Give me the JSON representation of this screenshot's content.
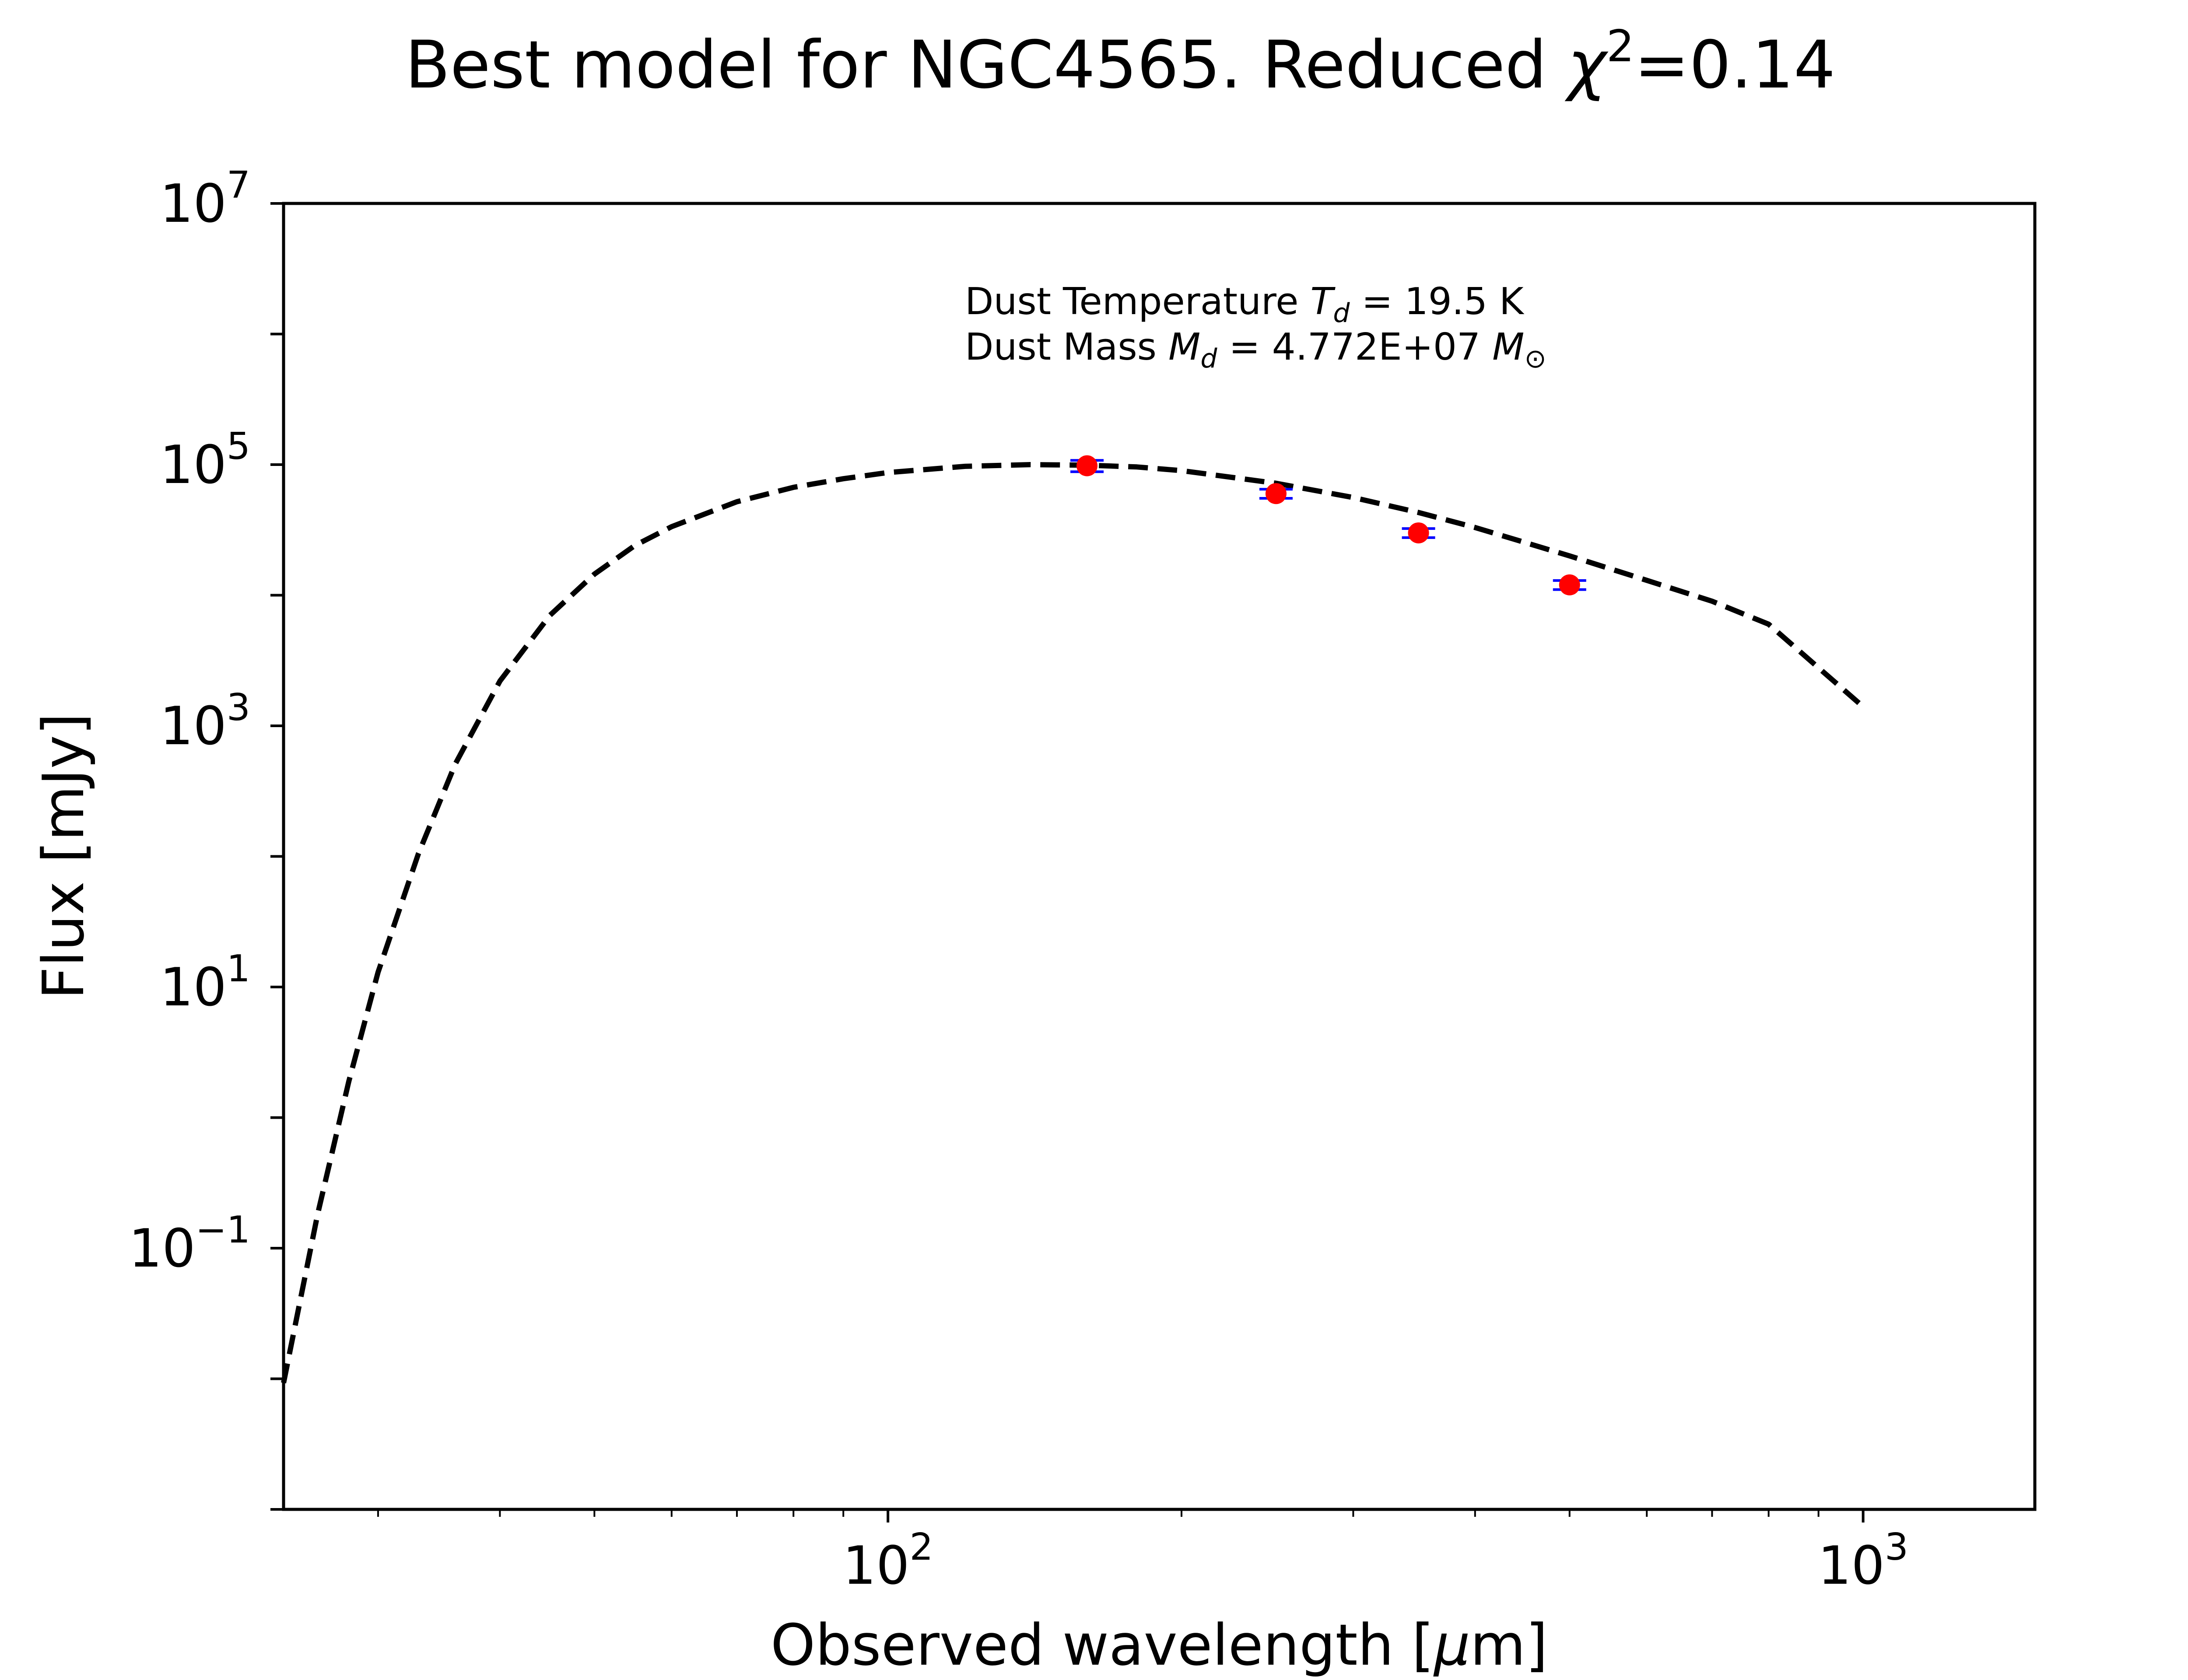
{
  "chart_data": {
    "type": "line",
    "title": "Best model for NGC4565. Reduced χ²=0.14",
    "title_main": "Best model for NGC4565. Reduced ",
    "title_chi": "χ",
    "title_exp": "2",
    "title_tail": "=0.14",
    "xlabel": "Observed wavelength [μm]",
    "xlabel_main": "Observed wavelength [",
    "xlabel_mu": "μ",
    "xlabel_tail": "m]",
    "ylabel": "Flux [mJy]",
    "xscale": "log",
    "yscale": "log",
    "xlim": [
      24,
      1500
    ],
    "ylim": [
      0.001,
      10000000
    ],
    "grid": false,
    "xticks": [
      {
        "value": 100,
        "base": "10",
        "exp": "2"
      },
      {
        "value": 1000,
        "base": "10",
        "exp": "3"
      }
    ],
    "yticks": [
      {
        "value": 0.1,
        "base": "10",
        "exp": "−1"
      },
      {
        "value": 10,
        "base": "10",
        "exp": "1"
      },
      {
        "value": 1000,
        "base": "10",
        "exp": "3"
      },
      {
        "value": 100000,
        "base": "10",
        "exp": "5"
      },
      {
        "value": 10000000,
        "base": "10",
        "exp": "7"
      }
    ],
    "annotation": {
      "temperature": {
        "pre": "Dust Temperature ",
        "sym": "T",
        "sub": "d",
        "post": " = 19.5 K"
      },
      "mass": {
        "pre": "Dust Mass ",
        "sym": "M",
        "sub": "d",
        "post": " = 4.772E+07 ",
        "sym2": "M",
        "sub2": "⊙"
      }
    },
    "series": [
      {
        "kind": "model",
        "style": "dashed",
        "color": "#000000",
        "x": [
          24,
          26,
          28,
          30,
          33,
          36,
          40,
          45,
          50,
          55,
          60,
          70,
          80,
          90,
          100,
          120,
          140,
          160,
          180,
          200,
          250,
          300,
          350,
          400,
          500,
          600,
          700,
          800,
          1000
        ],
        "y": [
          0.0093,
          0.18,
          1.9,
          13,
          105,
          510,
          2200,
          7000,
          14500,
          24000,
          33500,
          52000,
          67000,
          78000,
          87000,
          97000,
          100000,
          99000,
          96000,
          90000,
          72000,
          56000,
          43000,
          33000,
          20000,
          13000,
          9000,
          6000,
          1400
        ]
      },
      {
        "kind": "observed",
        "color": "#ff0000",
        "errorbar_color": "#0000ff",
        "x": [
          160,
          250,
          350,
          500
        ],
        "y": [
          98000,
          60000,
          30000,
          12000
        ],
        "yerr": [
          9800,
          4800,
          2400,
          960
        ]
      }
    ]
  },
  "colors": {
    "model": "#000000",
    "points": "#ff0000",
    "errorbars": "#0000ff",
    "axes": "#000000"
  }
}
